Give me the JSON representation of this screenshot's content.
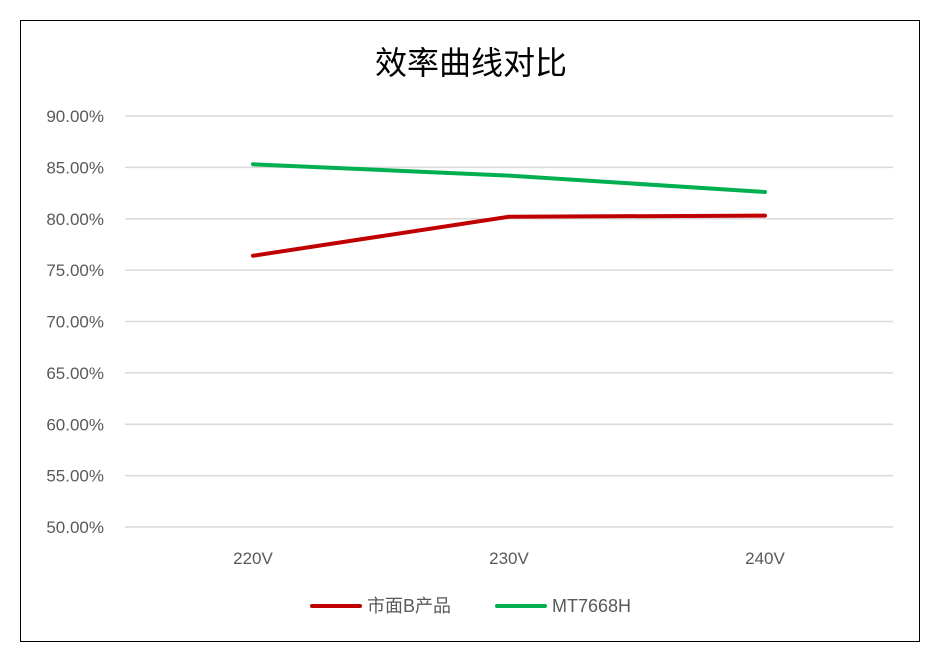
{
  "chart_data": {
    "type": "line",
    "title": "效率曲线对比",
    "categories": [
      "220V",
      "230V",
      "240V"
    ],
    "series": [
      {
        "name": "市面B产品",
        "color": "#C00000",
        "values": [
          76.4,
          80.2,
          80.3
        ]
      },
      {
        "name": "MT7668H",
        "color": "#00B050",
        "values": [
          85.3,
          84.2,
          82.6
        ]
      }
    ],
    "ylim": [
      50,
      90
    ],
    "yticks": [
      "50.00%",
      "55.00%",
      "60.00%",
      "65.00%",
      "70.00%",
      "75.00%",
      "80.00%",
      "85.00%",
      "90.00%"
    ],
    "grid": true,
    "legend": "bottom"
  }
}
